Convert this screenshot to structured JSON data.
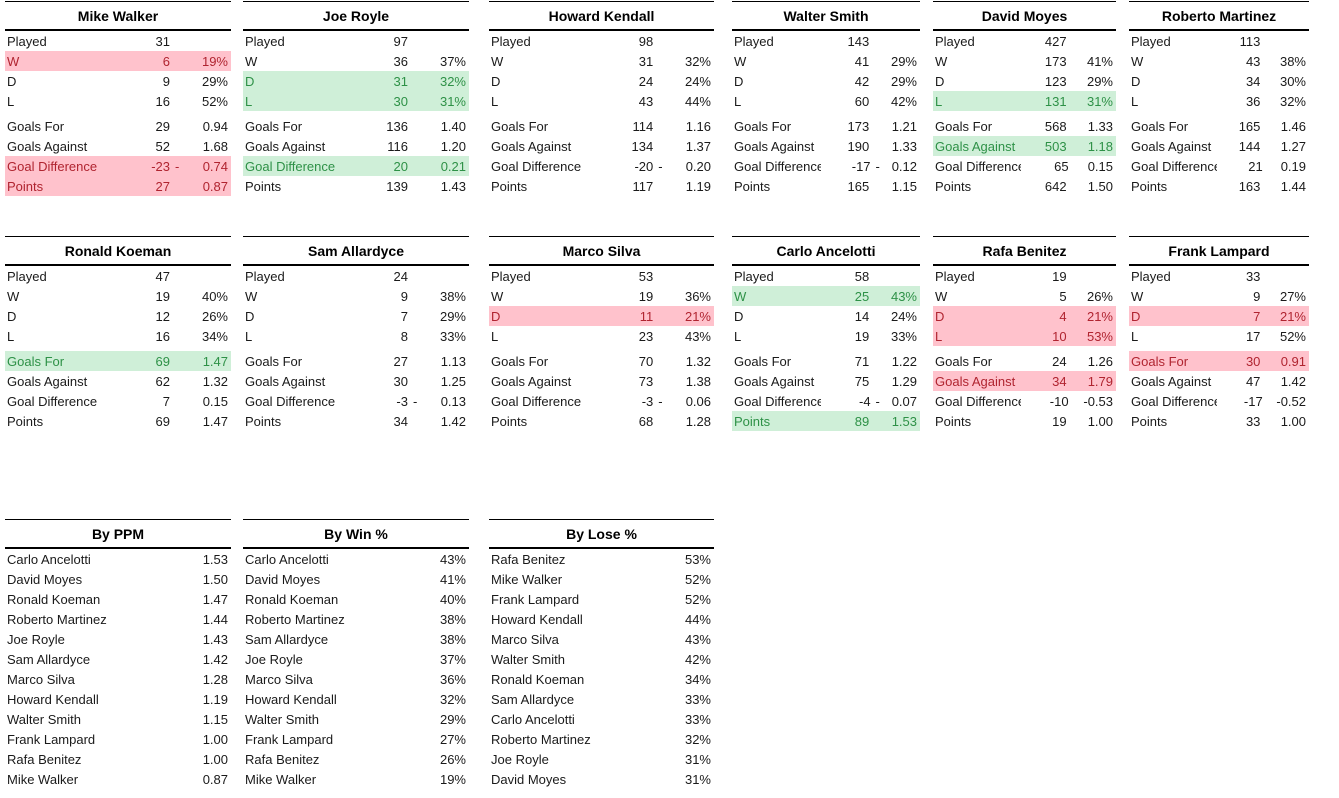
{
  "colors": {
    "bad_fill": "#FFC2CC",
    "bad_text": "#B02430",
    "good_fill": "#CFEFD8",
    "good_text": "#2E9147",
    "border": "#000000"
  },
  "managers": [
    {
      "name": "Mike Walker",
      "rows": [
        {
          "label": "Played",
          "v1": "31",
          "v2": "",
          "hl": "",
          "split": false
        },
        {
          "label": "W",
          "v1": "6",
          "v2": "19%",
          "hl": "red",
          "split": false
        },
        {
          "label": "D",
          "v1": "9",
          "v2": "29%",
          "hl": "",
          "split": false
        },
        {
          "label": "L",
          "v1": "16",
          "v2": "52%",
          "hl": "",
          "split": false
        },
        {
          "label": "Goals For",
          "v1": "29",
          "v2": "0.94",
          "hl": "",
          "split": false
        },
        {
          "label": "Goals Against",
          "v1": "52",
          "v2": "1.68",
          "hl": "",
          "split": false
        },
        {
          "label": "Goal Difference",
          "v1": "-23",
          "v2": "0.74",
          "hl": "red",
          "split": true
        },
        {
          "label": "Points",
          "v1": "27",
          "v2": "0.87",
          "hl": "red",
          "split": false
        }
      ]
    },
    {
      "name": "Joe Royle",
      "rows": [
        {
          "label": "Played",
          "v1": "97",
          "v2": "",
          "hl": "",
          "split": false
        },
        {
          "label": "W",
          "v1": "36",
          "v2": "37%",
          "hl": "",
          "split": false
        },
        {
          "label": "D",
          "v1": "31",
          "v2": "32%",
          "hl": "green",
          "split": false
        },
        {
          "label": "L",
          "v1": "30",
          "v2": "31%",
          "hl": "green",
          "split": false
        },
        {
          "label": "Goals For",
          "v1": "136",
          "v2": "1.40",
          "hl": "",
          "split": false
        },
        {
          "label": "Goals Against",
          "v1": "116",
          "v2": "1.20",
          "hl": "",
          "split": false
        },
        {
          "label": "Goal Difference",
          "v1": "20",
          "v2": "0.21",
          "hl": "green",
          "split": false
        },
        {
          "label": "Points",
          "v1": "139",
          "v2": "1.43",
          "hl": "",
          "split": false
        }
      ]
    },
    {
      "name": "Howard Kendall",
      "rows": [
        {
          "label": "Played",
          "v1": "98",
          "v2": "",
          "hl": "",
          "split": false
        },
        {
          "label": "W",
          "v1": "31",
          "v2": "32%",
          "hl": "",
          "split": false
        },
        {
          "label": "D",
          "v1": "24",
          "v2": "24%",
          "hl": "",
          "split": false
        },
        {
          "label": "L",
          "v1": "43",
          "v2": "44%",
          "hl": "",
          "split": false
        },
        {
          "label": "Goals For",
          "v1": "114",
          "v2": "1.16",
          "hl": "",
          "split": false
        },
        {
          "label": "Goals Against",
          "v1": "134",
          "v2": "1.37",
          "hl": "",
          "split": false
        },
        {
          "label": "Goal Difference",
          "v1": "-20",
          "v2": "0.20",
          "hl": "",
          "split": true
        },
        {
          "label": "Points",
          "v1": "117",
          "v2": "1.19",
          "hl": "",
          "split": false
        }
      ]
    },
    {
      "name": "Walter Smith",
      "rows": [
        {
          "label": "Played",
          "v1": "143",
          "v2": "",
          "hl": "",
          "split": false
        },
        {
          "label": "W",
          "v1": "41",
          "v2": "29%",
          "hl": "",
          "split": false
        },
        {
          "label": "D",
          "v1": "42",
          "v2": "29%",
          "hl": "",
          "split": false
        },
        {
          "label": "L",
          "v1": "60",
          "v2": "42%",
          "hl": "",
          "split": false
        },
        {
          "label": "Goals For",
          "v1": "173",
          "v2": "1.21",
          "hl": "",
          "split": false
        },
        {
          "label": "Goals Against",
          "v1": "190",
          "v2": "1.33",
          "hl": "",
          "split": false
        },
        {
          "label": "Goal Difference",
          "v1": "-17",
          "v2": "0.12",
          "hl": "",
          "split": true
        },
        {
          "label": "Points",
          "v1": "165",
          "v2": "1.15",
          "hl": "",
          "split": false
        }
      ]
    },
    {
      "name": "David Moyes",
      "rows": [
        {
          "label": "Played",
          "v1": "427",
          "v2": "",
          "hl": "",
          "split": false
        },
        {
          "label": "W",
          "v1": "173",
          "v2": "41%",
          "hl": "",
          "split": false
        },
        {
          "label": "D",
          "v1": "123",
          "v2": "29%",
          "hl": "",
          "split": false
        },
        {
          "label": "L",
          "v1": "131",
          "v2": "31%",
          "hl": "green",
          "split": false
        },
        {
          "label": "Goals For",
          "v1": "568",
          "v2": "1.33",
          "hl": "",
          "split": false
        },
        {
          "label": "Goals Against",
          "v1": "503",
          "v2": "1.18",
          "hl": "green",
          "split": false
        },
        {
          "label": "Goal Difference",
          "v1": "65",
          "v2": "0.15",
          "hl": "",
          "split": false
        },
        {
          "label": "Points",
          "v1": "642",
          "v2": "1.50",
          "hl": "",
          "split": false
        }
      ]
    },
    {
      "name": "Roberto Martinez",
      "rows": [
        {
          "label": "Played",
          "v1": "113",
          "v2": "",
          "hl": "",
          "split": false
        },
        {
          "label": "W",
          "v1": "43",
          "v2": "38%",
          "hl": "",
          "split": false
        },
        {
          "label": "D",
          "v1": "34",
          "v2": "30%",
          "hl": "",
          "split": false
        },
        {
          "label": "L",
          "v1": "36",
          "v2": "32%",
          "hl": "",
          "split": false
        },
        {
          "label": "Goals For",
          "v1": "165",
          "v2": "1.46",
          "hl": "",
          "split": false
        },
        {
          "label": "Goals Against",
          "v1": "144",
          "v2": "1.27",
          "hl": "",
          "split": false
        },
        {
          "label": "Goal Difference",
          "v1": "21",
          "v2": "0.19",
          "hl": "",
          "split": false
        },
        {
          "label": "Points",
          "v1": "163",
          "v2": "1.44",
          "hl": "",
          "split": false
        }
      ]
    },
    {
      "name": "Ronald Koeman",
      "rows": [
        {
          "label": "Played",
          "v1": "47",
          "v2": "",
          "hl": "",
          "split": false
        },
        {
          "label": "W",
          "v1": "19",
          "v2": "40%",
          "hl": "",
          "split": false
        },
        {
          "label": "D",
          "v1": "12",
          "v2": "26%",
          "hl": "",
          "split": false
        },
        {
          "label": "L",
          "v1": "16",
          "v2": "34%",
          "hl": "",
          "split": false
        },
        {
          "label": "Goals For",
          "v1": "69",
          "v2": "1.47",
          "hl": "green",
          "split": false
        },
        {
          "label": "Goals Against",
          "v1": "62",
          "v2": "1.32",
          "hl": "",
          "split": false
        },
        {
          "label": "Goal Difference",
          "v1": "7",
          "v2": "0.15",
          "hl": "",
          "split": false
        },
        {
          "label": "Points",
          "v1": "69",
          "v2": "1.47",
          "hl": "",
          "split": false
        }
      ]
    },
    {
      "name": "Sam Allardyce",
      "rows": [
        {
          "label": "Played",
          "v1": "24",
          "v2": "",
          "hl": "",
          "split": false
        },
        {
          "label": "W",
          "v1": "9",
          "v2": "38%",
          "hl": "",
          "split": false
        },
        {
          "label": "D",
          "v1": "7",
          "v2": "29%",
          "hl": "",
          "split": false
        },
        {
          "label": "L",
          "v1": "8",
          "v2": "33%",
          "hl": "",
          "split": false
        },
        {
          "label": "Goals For",
          "v1": "27",
          "v2": "1.13",
          "hl": "",
          "split": false
        },
        {
          "label": "Goals Against",
          "v1": "30",
          "v2": "1.25",
          "hl": "",
          "split": false
        },
        {
          "label": "Goal Difference",
          "v1": "-3",
          "v2": "0.13",
          "hl": "",
          "split": true
        },
        {
          "label": "Points",
          "v1": "34",
          "v2": "1.42",
          "hl": "",
          "split": false
        }
      ]
    },
    {
      "name": "Marco Silva",
      "rows": [
        {
          "label": "Played",
          "v1": "53",
          "v2": "",
          "hl": "",
          "split": false
        },
        {
          "label": "W",
          "v1": "19",
          "v2": "36%",
          "hl": "",
          "split": false
        },
        {
          "label": "D",
          "v1": "11",
          "v2": "21%",
          "hl": "red",
          "split": false
        },
        {
          "label": "L",
          "v1": "23",
          "v2": "43%",
          "hl": "",
          "split": false
        },
        {
          "label": "Goals For",
          "v1": "70",
          "v2": "1.32",
          "hl": "",
          "split": false
        },
        {
          "label": "Goals Against",
          "v1": "73",
          "v2": "1.38",
          "hl": "",
          "split": false
        },
        {
          "label": "Goal Difference",
          "v1": "-3",
          "v2": "0.06",
          "hl": "",
          "split": true
        },
        {
          "label": "Points",
          "v1": "68",
          "v2": "1.28",
          "hl": "",
          "split": false
        }
      ]
    },
    {
      "name": "Carlo Ancelotti",
      "rows": [
        {
          "label": "Played",
          "v1": "58",
          "v2": "",
          "hl": "",
          "split": false
        },
        {
          "label": "W",
          "v1": "25",
          "v2": "43%",
          "hl": "green",
          "split": false
        },
        {
          "label": "D",
          "v1": "14",
          "v2": "24%",
          "hl": "",
          "split": false
        },
        {
          "label": "L",
          "v1": "19",
          "v2": "33%",
          "hl": "",
          "split": false
        },
        {
          "label": "Goals For",
          "v1": "71",
          "v2": "1.22",
          "hl": "",
          "split": false
        },
        {
          "label": "Goals Against",
          "v1": "75",
          "v2": "1.29",
          "hl": "",
          "split": false
        },
        {
          "label": "Goal Difference",
          "v1": "-4",
          "v2": "0.07",
          "hl": "",
          "split": true
        },
        {
          "label": "Points",
          "v1": "89",
          "v2": "1.53",
          "hl": "green",
          "split": false
        }
      ]
    },
    {
      "name": "Rafa Benitez",
      "rows": [
        {
          "label": "Played",
          "v1": "19",
          "v2": "",
          "hl": "",
          "split": false
        },
        {
          "label": "W",
          "v1": "5",
          "v2": "26%",
          "hl": "",
          "split": false
        },
        {
          "label": "D",
          "v1": "4",
          "v2": "21%",
          "hl": "red",
          "split": false
        },
        {
          "label": "L",
          "v1": "10",
          "v2": "53%",
          "hl": "red",
          "split": false
        },
        {
          "label": "Goals For",
          "v1": "24",
          "v2": "1.26",
          "hl": "",
          "split": false
        },
        {
          "label": "Goals Against",
          "v1": "34",
          "v2": "1.79",
          "hl": "red",
          "split": false
        },
        {
          "label": "Goal Difference",
          "v1": "-10",
          "v2": "-0.53",
          "hl": "",
          "split": false
        },
        {
          "label": "Points",
          "v1": "19",
          "v2": "1.00",
          "hl": "",
          "split": false
        }
      ]
    },
    {
      "name": "Frank Lampard",
      "rows": [
        {
          "label": "Played",
          "v1": "33",
          "v2": "",
          "hl": "",
          "split": false
        },
        {
          "label": "W",
          "v1": "9",
          "v2": "27%",
          "hl": "",
          "split": false
        },
        {
          "label": "D",
          "v1": "7",
          "v2": "21%",
          "hl": "red",
          "split": false
        },
        {
          "label": "L",
          "v1": "17",
          "v2": "52%",
          "hl": "",
          "split": false
        },
        {
          "label": "Goals For",
          "v1": "30",
          "v2": "0.91",
          "hl": "red",
          "split": false
        },
        {
          "label": "Goals Against",
          "v1": "47",
          "v2": "1.42",
          "hl": "",
          "split": false
        },
        {
          "label": "Goal Difference",
          "v1": "-17",
          "v2": "-0.52",
          "hl": "",
          "split": false
        },
        {
          "label": "Points",
          "v1": "33",
          "v2": "1.00",
          "hl": "",
          "split": false
        }
      ]
    }
  ],
  "rankings": [
    {
      "title": "By PPM",
      "rows": [
        {
          "name": "Carlo Ancelotti",
          "value": "1.53"
        },
        {
          "name": "David Moyes",
          "value": "1.50"
        },
        {
          "name": "Ronald Koeman",
          "value": "1.47"
        },
        {
          "name": "Roberto Martinez",
          "value": "1.44"
        },
        {
          "name": "Joe Royle",
          "value": "1.43"
        },
        {
          "name": "Sam Allardyce",
          "value": "1.42"
        },
        {
          "name": "Marco Silva",
          "value": "1.28"
        },
        {
          "name": "Howard Kendall",
          "value": "1.19"
        },
        {
          "name": "Walter Smith",
          "value": "1.15"
        },
        {
          "name": "Frank Lampard",
          "value": "1.00"
        },
        {
          "name": "Rafa Benitez",
          "value": "1.00"
        },
        {
          "name": "Mike Walker",
          "value": "0.87"
        }
      ]
    },
    {
      "title": "By Win %",
      "rows": [
        {
          "name": "Carlo Ancelotti",
          "value": "43%"
        },
        {
          "name": "David Moyes",
          "value": "41%"
        },
        {
          "name": "Ronald Koeman",
          "value": "40%"
        },
        {
          "name": "Roberto Martinez",
          "value": "38%"
        },
        {
          "name": "Sam Allardyce",
          "value": "38%"
        },
        {
          "name": "Joe Royle",
          "value": "37%"
        },
        {
          "name": "Marco Silva",
          "value": "36%"
        },
        {
          "name": "Howard Kendall",
          "value": "32%"
        },
        {
          "name": "Walter Smith",
          "value": "29%"
        },
        {
          "name": "Frank Lampard",
          "value": "27%"
        },
        {
          "name": "Rafa Benitez",
          "value": "26%"
        },
        {
          "name": "Mike Walker",
          "value": "19%"
        }
      ]
    },
    {
      "title": "By Lose %",
      "rows": [
        {
          "name": "Rafa Benitez",
          "value": "53%"
        },
        {
          "name": "Mike Walker",
          "value": "52%"
        },
        {
          "name": "Frank Lampard",
          "value": "52%"
        },
        {
          "name": "Howard Kendall",
          "value": "44%"
        },
        {
          "name": "Marco Silva",
          "value": "43%"
        },
        {
          "name": "Walter Smith",
          "value": "42%"
        },
        {
          "name": "Ronald Koeman",
          "value": "34%"
        },
        {
          "name": "Sam Allardyce",
          "value": "33%"
        },
        {
          "name": "Carlo Ancelotti",
          "value": "33%"
        },
        {
          "name": "Roberto Martinez",
          "value": "32%"
        },
        {
          "name": "Joe Royle",
          "value": "31%"
        },
        {
          "name": "David Moyes",
          "value": "31%"
        }
      ]
    }
  ]
}
